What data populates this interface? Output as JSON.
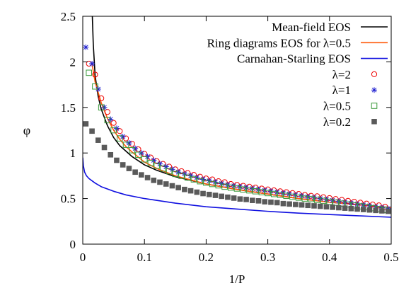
{
  "chart_data": {
    "type": "scatter",
    "title": "",
    "xlabel": "1/P",
    "ylabel": "φ",
    "xlim": [
      0,
      0.5
    ],
    "ylim": [
      0,
      2.5
    ],
    "xticks": [
      0,
      0.1,
      0.2,
      0.3,
      0.4,
      0.5
    ],
    "xtick_labels": [
      "0",
      "0.1",
      "0.2",
      "0.3",
      "0.4",
      "0.5"
    ],
    "yticks": [
      0,
      0.5,
      1,
      1.5,
      2,
      2.5
    ],
    "ytick_labels": [
      "0",
      "0.5",
      "1",
      "1.5",
      "2",
      "2.5"
    ],
    "grid": false,
    "legend_position": "top-right",
    "series": [
      {
        "name": "Mean-field EOS",
        "kind": "line",
        "color": "#000000",
        "x": [
          0.0155,
          0.017,
          0.02,
          0.025,
          0.03,
          0.04,
          0.05,
          0.06,
          0.07,
          0.08,
          0.1,
          0.12,
          0.15,
          0.2,
          0.25,
          0.3,
          0.35,
          0.4,
          0.45,
          0.5
        ],
        "y": [
          2.5,
          2.2,
          1.85,
          1.62,
          1.48,
          1.3,
          1.17,
          1.08,
          1.02,
          0.96,
          0.87,
          0.81,
          0.74,
          0.66,
          0.6,
          0.55,
          0.5,
          0.46,
          0.43,
          0.4
        ]
      },
      {
        "name": "Ring diagrams EOS for λ=0.5",
        "kind": "line",
        "color": "#ff5a0a",
        "x": [
          0.015,
          0.02,
          0.03,
          0.04,
          0.05,
          0.06,
          0.07,
          0.08,
          0.1,
          0.12,
          0.15,
          0.2,
          0.25,
          0.3,
          0.35,
          0.4,
          0.45,
          0.5
        ],
        "y": [
          1.98,
          1.78,
          1.55,
          1.38,
          1.25,
          1.15,
          1.07,
          1.01,
          0.9,
          0.83,
          0.75,
          0.66,
          0.6,
          0.55,
          0.5,
          0.46,
          0.43,
          0.4
        ]
      },
      {
        "name": "Carnahan-Starling EOS",
        "kind": "line",
        "color": "#1010e0",
        "x": [
          0.0,
          0.001,
          0.003,
          0.006,
          0.01,
          0.02,
          0.03,
          0.05,
          0.07,
          0.1,
          0.15,
          0.2,
          0.25,
          0.3,
          0.35,
          0.4,
          0.45,
          0.5
        ],
        "y": [
          0.95,
          0.86,
          0.79,
          0.75,
          0.72,
          0.67,
          0.63,
          0.58,
          0.54,
          0.5,
          0.45,
          0.41,
          0.385,
          0.36,
          0.34,
          0.325,
          0.31,
          0.295
        ]
      },
      {
        "name": "λ=2",
        "kind": "markers",
        "marker": "open-circle",
        "color": "#ee0000",
        "x": [
          0.01,
          0.02,
          0.03,
          0.04,
          0.05,
          0.06,
          0.07,
          0.08,
          0.09,
          0.1,
          0.11,
          0.12,
          0.13,
          0.14,
          0.15,
          0.16,
          0.17,
          0.18,
          0.19,
          0.2,
          0.21,
          0.22,
          0.23,
          0.24,
          0.25,
          0.26,
          0.27,
          0.28,
          0.29,
          0.3,
          0.31,
          0.32,
          0.33,
          0.34,
          0.35,
          0.36,
          0.37,
          0.38,
          0.39,
          0.4,
          0.41,
          0.42,
          0.43,
          0.44,
          0.45,
          0.46,
          0.47,
          0.48,
          0.49
        ],
        "y": [
          1.98,
          1.86,
          1.6,
          1.45,
          1.33,
          1.24,
          1.16,
          1.1,
          1.04,
          0.99,
          0.95,
          0.91,
          0.88,
          0.85,
          0.82,
          0.8,
          0.78,
          0.76,
          0.74,
          0.72,
          0.71,
          0.69,
          0.68,
          0.66,
          0.65,
          0.64,
          0.63,
          0.62,
          0.61,
          0.6,
          0.59,
          0.58,
          0.57,
          0.56,
          0.55,
          0.54,
          0.53,
          0.525,
          0.515,
          0.505,
          0.495,
          0.485,
          0.475,
          0.465,
          0.455,
          0.445,
          0.435,
          0.425,
          0.41
        ]
      },
      {
        "name": "λ=1",
        "kind": "markers",
        "marker": "asterisk",
        "color": "#2020d0",
        "x": [
          0.005,
          0.015,
          0.025,
          0.035,
          0.045,
          0.055,
          0.065,
          0.075,
          0.085,
          0.095,
          0.105,
          0.115,
          0.125,
          0.135,
          0.145,
          0.155,
          0.165,
          0.175,
          0.185,
          0.195,
          0.205,
          0.215,
          0.225,
          0.235,
          0.245,
          0.255,
          0.265,
          0.275,
          0.285,
          0.295,
          0.305,
          0.315,
          0.325,
          0.335,
          0.345,
          0.355,
          0.365,
          0.375,
          0.385,
          0.395,
          0.405,
          0.415,
          0.425,
          0.435,
          0.445,
          0.455,
          0.465,
          0.475,
          0.485,
          0.495
        ],
        "y": [
          2.16,
          1.98,
          1.7,
          1.5,
          1.37,
          1.27,
          1.18,
          1.11,
          1.05,
          1.0,
          0.96,
          0.92,
          0.88,
          0.85,
          0.82,
          0.79,
          0.77,
          0.75,
          0.73,
          0.71,
          0.695,
          0.68,
          0.665,
          0.65,
          0.64,
          0.63,
          0.62,
          0.61,
          0.6,
          0.59,
          0.58,
          0.57,
          0.56,
          0.55,
          0.54,
          0.53,
          0.52,
          0.51,
          0.5,
          0.49,
          0.48,
          0.47,
          0.46,
          0.45,
          0.44,
          0.43,
          0.42,
          0.41,
          0.4,
          0.39
        ]
      },
      {
        "name": "λ=0.5",
        "kind": "markers",
        "marker": "open-square",
        "color": "#3a9a3a",
        "x": [
          0.01,
          0.02,
          0.03,
          0.04,
          0.05,
          0.06,
          0.07,
          0.08,
          0.09,
          0.1,
          0.11,
          0.12,
          0.13,
          0.14,
          0.15,
          0.16,
          0.17,
          0.18,
          0.19,
          0.2,
          0.21,
          0.22,
          0.23,
          0.24,
          0.25,
          0.26,
          0.27,
          0.28,
          0.29,
          0.3,
          0.31,
          0.32,
          0.33,
          0.34,
          0.35,
          0.36,
          0.37,
          0.38,
          0.39,
          0.4,
          0.41,
          0.42,
          0.43,
          0.44,
          0.45,
          0.46,
          0.47,
          0.48,
          0.49
        ],
        "y": [
          1.88,
          1.73,
          1.5,
          1.36,
          1.25,
          1.16,
          1.09,
          1.03,
          0.98,
          0.93,
          0.89,
          0.86,
          0.83,
          0.8,
          0.77,
          0.75,
          0.73,
          0.71,
          0.69,
          0.675,
          0.66,
          0.645,
          0.63,
          0.62,
          0.61,
          0.6,
          0.59,
          0.58,
          0.57,
          0.56,
          0.55,
          0.54,
          0.53,
          0.52,
          0.51,
          0.5,
          0.495,
          0.485,
          0.475,
          0.465,
          0.455,
          0.445,
          0.435,
          0.425,
          0.415,
          0.405,
          0.395,
          0.385,
          0.375
        ]
      },
      {
        "name": "λ=0.2",
        "kind": "markers",
        "marker": "filled-square",
        "color": "#5a5a5a",
        "x": [
          0.005,
          0.015,
          0.025,
          0.035,
          0.045,
          0.055,
          0.065,
          0.075,
          0.085,
          0.095,
          0.105,
          0.115,
          0.125,
          0.135,
          0.145,
          0.155,
          0.165,
          0.175,
          0.185,
          0.195,
          0.205,
          0.215,
          0.225,
          0.235,
          0.245,
          0.255,
          0.265,
          0.275,
          0.285,
          0.295,
          0.305,
          0.315,
          0.325,
          0.335,
          0.345,
          0.355,
          0.365,
          0.375,
          0.385,
          0.395,
          0.405,
          0.415,
          0.425,
          0.435,
          0.445,
          0.455,
          0.465,
          0.475,
          0.485,
          0.495
        ],
        "y": [
          1.32,
          1.24,
          1.14,
          1.06,
          0.98,
          0.92,
          0.87,
          0.83,
          0.79,
          0.76,
          0.73,
          0.7,
          0.68,
          0.66,
          0.64,
          0.62,
          0.6,
          0.585,
          0.57,
          0.555,
          0.545,
          0.535,
          0.525,
          0.515,
          0.505,
          0.495,
          0.49,
          0.48,
          0.475,
          0.465,
          0.46,
          0.455,
          0.445,
          0.44,
          0.435,
          0.43,
          0.425,
          0.42,
          0.415,
          0.41,
          0.405,
          0.4,
          0.395,
          0.39,
          0.385,
          0.38,
          0.375,
          0.37,
          0.365,
          0.36
        ]
      }
    ]
  }
}
